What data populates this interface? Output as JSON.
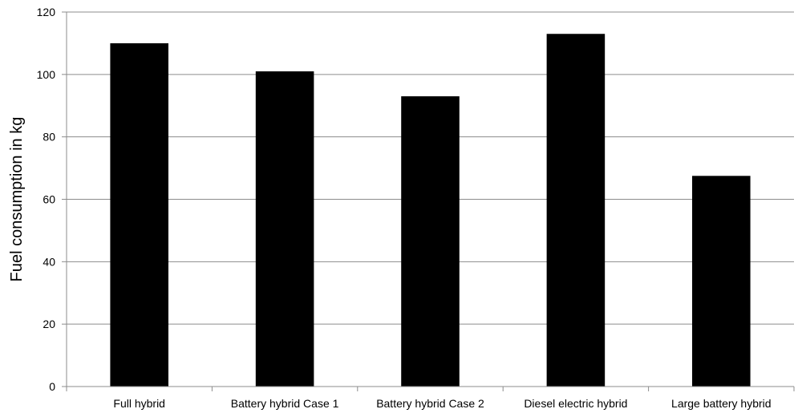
{
  "chart_data": {
    "type": "bar",
    "categories": [
      "Full hybrid",
      "Battery hybrid Case 1",
      "Battery hybrid Case 2",
      "Diesel electric hybrid",
      "Large battery hybrid"
    ],
    "values": [
      110,
      101,
      93,
      113,
      67.5
    ],
    "xlabel": "",
    "ylabel": "Fuel consumption in kg",
    "ylim": [
      0,
      120
    ],
    "yticks": [
      0,
      20,
      40,
      60,
      80,
      100,
      120
    ],
    "grid": true,
    "bar_color": "#000000",
    "grid_color": "#8c8c8c"
  }
}
